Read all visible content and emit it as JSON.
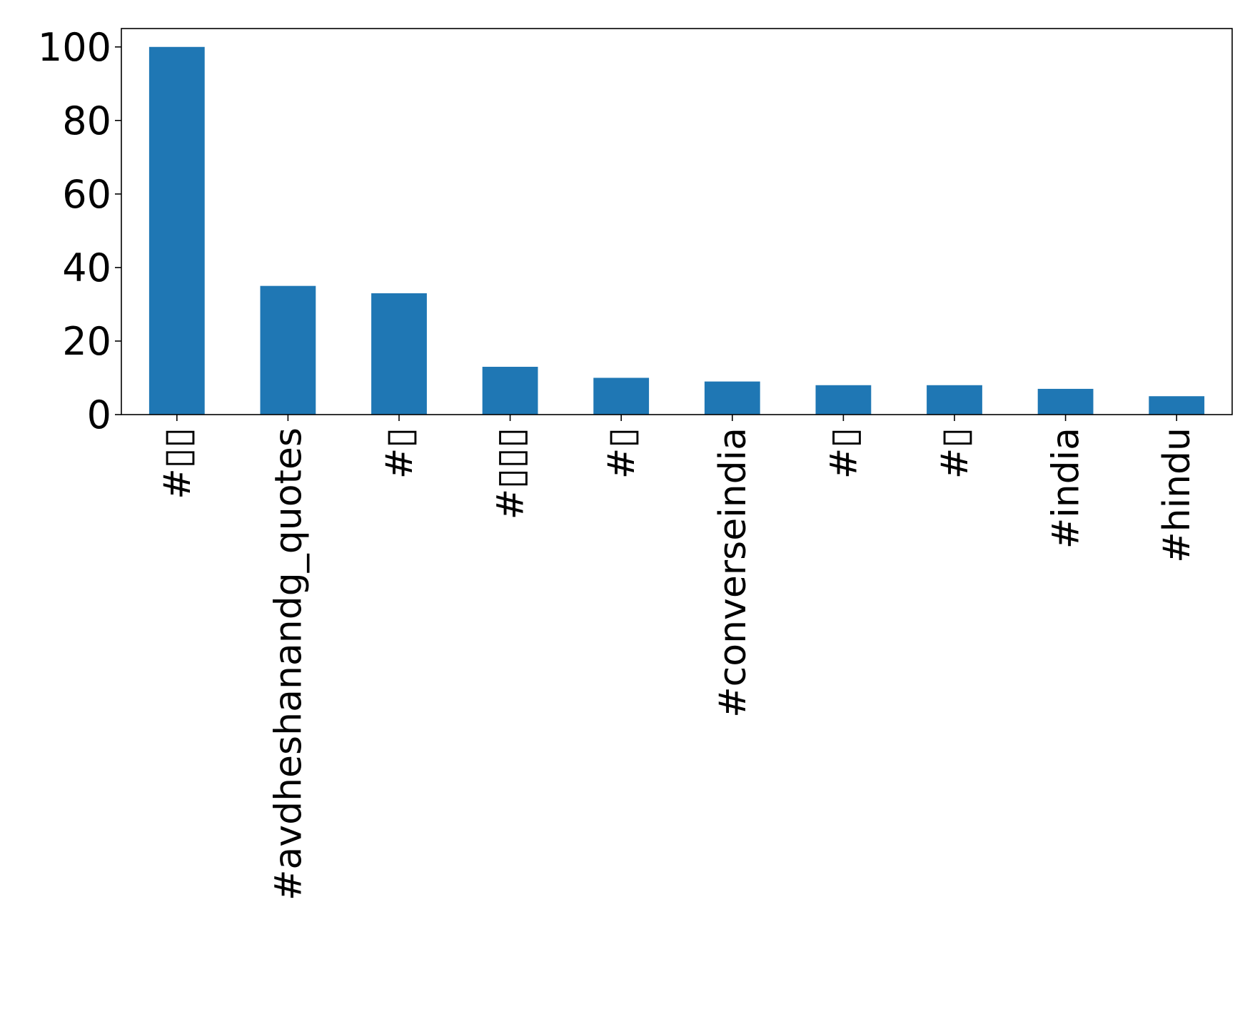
{
  "chart_data": {
    "type": "bar",
    "title": "",
    "xlabel": "",
    "ylabel": "",
    "categories": [
      "#▯▯",
      "#avdheshanandg_quotes",
      "#▯",
      "#▯▯▯",
      "#▯",
      "#converseindia",
      "#▯",
      "#▯",
      "#india",
      "#hindu"
    ],
    "values": [
      100,
      35,
      33,
      13,
      10,
      9,
      8,
      8,
      7,
      5
    ],
    "ylim": [
      0,
      105
    ],
    "yticks": [
      "0",
      "20",
      "40",
      "60",
      "80",
      "100"
    ],
    "grid": false,
    "legend": "none",
    "bar_color": "#1f77b4"
  }
}
